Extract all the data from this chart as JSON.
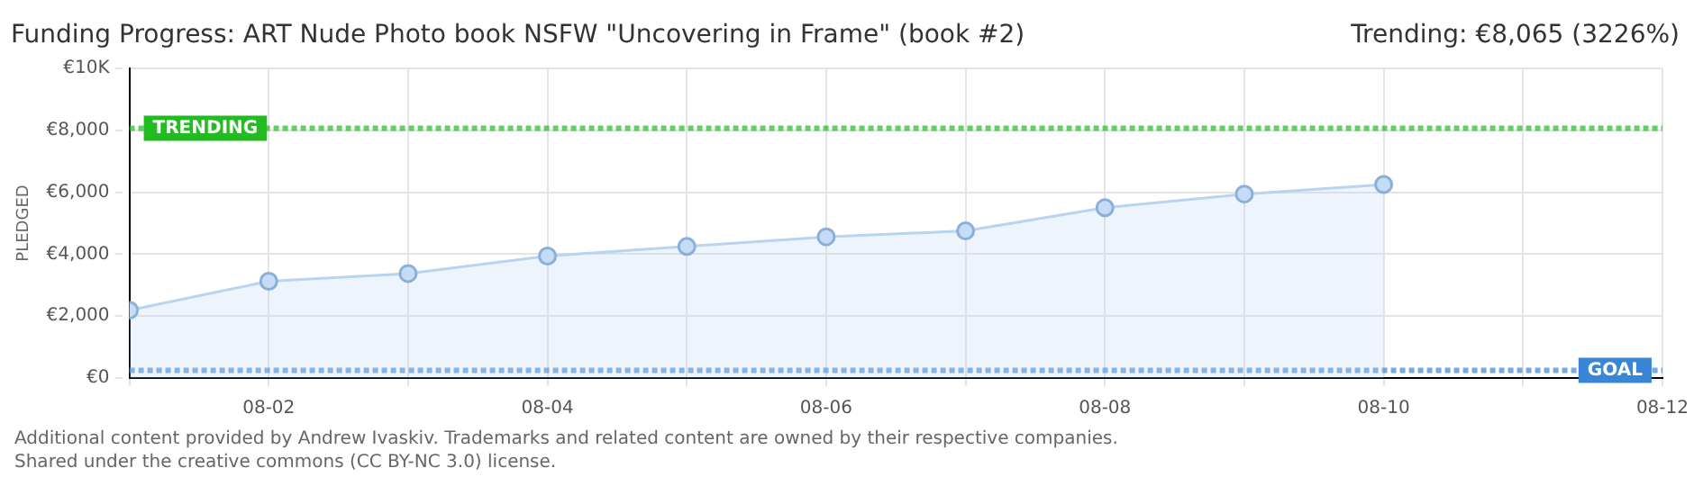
{
  "chart_data": {
    "type": "area",
    "title": "Funding Progress: ART Nude Photo book NSFW \"Uncovering in Frame\" (book #2)",
    "subtitle": "Trending: €8,065 (3226%)",
    "ylabel": "PLEDGED",
    "x": [
      "--08-01",
      "--08-02",
      "--08-03",
      "--08-04",
      "--08-05",
      "--08-06",
      "--08-07",
      "--08-08",
      "--08-09",
      "--08-10"
    ],
    "series": [
      {
        "color": "#b8d4f0",
        "values": [
          2190,
          3125,
          3375,
          3940,
          4250,
          4560,
          4750,
          5500,
          5940,
          6250
        ]
      }
    ],
    "xlim": [
      "--08-01",
      "--08-12"
    ],
    "xticks": [
      {
        "value": "--08-01",
        "label": null
      },
      {
        "value": "--08-02",
        "label": "08-02"
      },
      {
        "value": "--08-03",
        "label": null
      },
      {
        "value": "--08-04",
        "label": "08-04"
      },
      {
        "value": "--08-05",
        "label": null
      },
      {
        "value": "--08-06",
        "label": "08-06"
      },
      {
        "value": "--08-07",
        "label": null
      },
      {
        "value": "--08-08",
        "label": "08-08"
      },
      {
        "value": "--08-09",
        "label": null
      },
      {
        "value": "--08-10",
        "label": "08-10"
      },
      {
        "value": "--08-11",
        "label": null
      },
      {
        "value": "--08-12",
        "label": "08-12"
      }
    ],
    "ylim": [
      0,
      10000
    ],
    "yticks": [
      {
        "value": 0,
        "label": "€0"
      },
      {
        "value": 2000,
        "label": "€2,000"
      },
      {
        "value": 4000,
        "label": "€4,000"
      },
      {
        "value": 6000,
        "label": "€6,000"
      },
      {
        "value": 8000,
        "label": "€8,000"
      },
      {
        "value": 10000,
        "label": "€10K"
      }
    ],
    "ref_lines": [
      {
        "axis": "y",
        "value": 8065,
        "label": "TRENDING",
        "color": "#22bb22",
        "line_style": "dotted"
      },
      {
        "axis": "y",
        "value": 250,
        "label": "GOAL",
        "color": "#3a86d6",
        "line_style": "dotted"
      }
    ],
    "grid": true,
    "marker": "circle",
    "legend": false,
    "annotations": [
      "Additional content provided by Andrew Ivaskiv. Trademarks and related content are owned by their respective companies.",
      "Shared under the creative commons (CC BY-NC 3.0) license."
    ]
  }
}
